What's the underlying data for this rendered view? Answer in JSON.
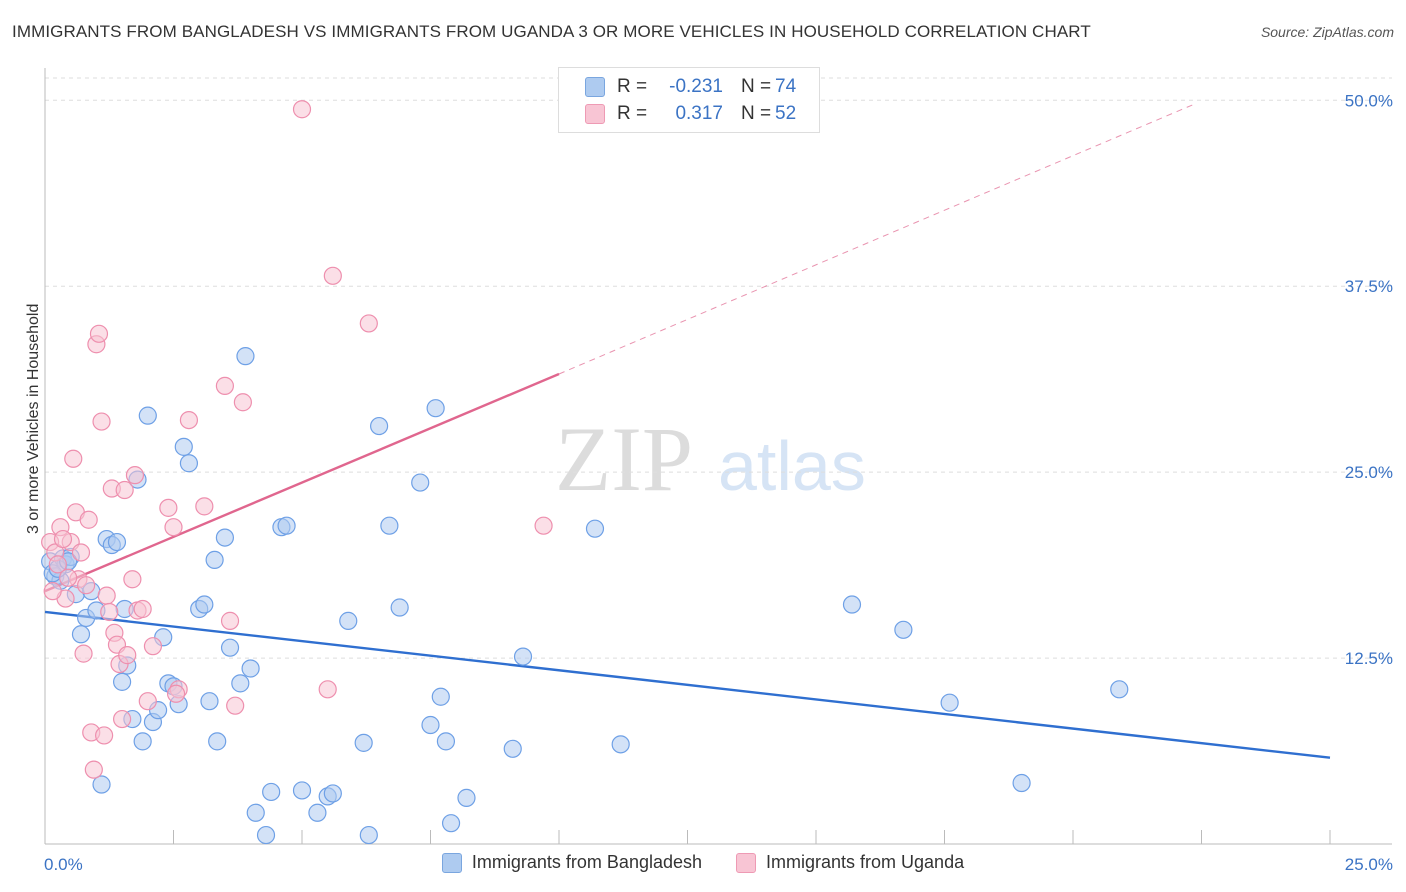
{
  "title": "IMMIGRANTS FROM BANGLADESH VS IMMIGRANTS FROM UGANDA 3 OR MORE VEHICLES IN HOUSEHOLD CORRELATION CHART",
  "source": "Source: ZipAtlas.com",
  "watermark": {
    "zip": "ZIP",
    "atlas": "atlas"
  },
  "correlation": {
    "rows": [
      {
        "r_label": "R =",
        "r_value": "-0.231",
        "n_label": "N =",
        "n_value": "74",
        "color": "#aecbf0",
        "border": "#7aa6df"
      },
      {
        "r_label": "R =",
        "r_value": "0.317",
        "n_label": "N =",
        "n_value": "52",
        "color": "#f8c5d4",
        "border": "#ee9ab4"
      }
    ]
  },
  "legend": {
    "items": [
      {
        "label": "Immigrants from Bangladesh",
        "color": "#aecbf0",
        "border": "#7aa6df"
      },
      {
        "label": "Immigrants from Uganda",
        "color": "#f8c5d4",
        "border": "#ee9ab4"
      }
    ]
  },
  "chart_data": {
    "type": "scatter",
    "title": "IMMIGRANTS FROM BANGLADESH VS IMMIGRANTS FROM UGANDA 3 OR MORE VEHICLES IN HOUSEHOLD CORRELATION CHART",
    "xlabel": "",
    "ylabel": "3 or more Vehicles in Household",
    "xlim": [
      0,
      25
    ],
    "ylim": [
      0,
      51.5
    ],
    "x_tick_labels": [
      "0.0%",
      "25.0%"
    ],
    "y_ticks": [
      12.5,
      25.0,
      37.5,
      50.0
    ],
    "y_tick_labels": [
      "12.5%",
      "25.0%",
      "37.5%",
      "50.0%"
    ],
    "grid": "horizontal dashed",
    "legend_position": "bottom",
    "series": [
      {
        "name": "Immigrants from Bangladesh",
        "color": "#6ea0e6",
        "fill": "#aecbf0",
        "trend": {
          "x": [
            0,
            25
          ],
          "y": [
            15.6,
            5.8
          ],
          "color": "#2f6fd0"
        },
        "points": [
          [
            0.1,
            19.0
          ],
          [
            0.2,
            18.0
          ],
          [
            0.3,
            17.7
          ],
          [
            0.35,
            19.2
          ],
          [
            0.4,
            18.8
          ],
          [
            0.5,
            19.3
          ],
          [
            0.6,
            16.8
          ],
          [
            0.7,
            14.1
          ],
          [
            0.8,
            15.2
          ],
          [
            0.9,
            17.0
          ],
          [
            1.0,
            15.7
          ],
          [
            1.1,
            4.0
          ],
          [
            1.2,
            20.5
          ],
          [
            1.3,
            20.1
          ],
          [
            1.4,
            20.3
          ],
          [
            1.5,
            10.9
          ],
          [
            1.6,
            12.0
          ],
          [
            1.7,
            8.4
          ],
          [
            1.8,
            24.5
          ],
          [
            1.9,
            6.9
          ],
          [
            2.0,
            28.8
          ],
          [
            2.1,
            8.2
          ],
          [
            2.2,
            9.0
          ],
          [
            2.3,
            13.9
          ],
          [
            2.4,
            10.8
          ],
          [
            2.5,
            10.6
          ],
          [
            2.6,
            9.4
          ],
          [
            2.7,
            26.7
          ],
          [
            2.8,
            25.6
          ],
          [
            3.0,
            15.8
          ],
          [
            3.1,
            16.1
          ],
          [
            3.2,
            9.6
          ],
          [
            3.3,
            19.1
          ],
          [
            3.35,
            6.9
          ],
          [
            3.5,
            20.6
          ],
          [
            3.6,
            13.2
          ],
          [
            3.8,
            10.8
          ],
          [
            3.9,
            32.8
          ],
          [
            4.0,
            11.8
          ],
          [
            4.1,
            2.1
          ],
          [
            4.3,
            0.6
          ],
          [
            4.4,
            3.5
          ],
          [
            4.6,
            21.3
          ],
          [
            4.7,
            21.4
          ],
          [
            5.0,
            3.6
          ],
          [
            5.3,
            2.1
          ],
          [
            5.5,
            3.2
          ],
          [
            5.6,
            3.4
          ],
          [
            5.9,
            15.0
          ],
          [
            6.2,
            6.8
          ],
          [
            6.3,
            0.6
          ],
          [
            6.5,
            28.1
          ],
          [
            6.7,
            21.4
          ],
          [
            6.9,
            15.9
          ],
          [
            7.3,
            24.3
          ],
          [
            7.5,
            8.0
          ],
          [
            7.6,
            29.3
          ],
          [
            7.7,
            9.9
          ],
          [
            7.8,
            6.9
          ],
          [
            7.9,
            1.4
          ],
          [
            8.2,
            3.1
          ],
          [
            9.1,
            6.4
          ],
          [
            9.3,
            12.6
          ],
          [
            10.7,
            21.2
          ],
          [
            11.2,
            6.7
          ],
          [
            15.7,
            16.1
          ],
          [
            16.7,
            14.4
          ],
          [
            17.6,
            9.5
          ],
          [
            19.0,
            4.1
          ],
          [
            20.9,
            10.4
          ],
          [
            0.15,
            18.2
          ],
          [
            0.25,
            18.5
          ],
          [
            1.55,
            15.8
          ],
          [
            0.45,
            19.0
          ]
        ]
      },
      {
        "name": "Immigrants from Uganda",
        "color": "#ee8fae",
        "fill": "#f8c5d4",
        "trend": {
          "x": [
            0,
            10
          ],
          "y": [
            17.0,
            31.6
          ],
          "color": "#e0668e",
          "dashed_to": {
            "x": 22.4,
            "y": 49.8
          }
        },
        "points": [
          [
            0.1,
            20.3
          ],
          [
            0.2,
            19.6
          ],
          [
            0.25,
            18.8
          ],
          [
            0.3,
            21.3
          ],
          [
            0.4,
            16.5
          ],
          [
            0.5,
            20.3
          ],
          [
            0.55,
            25.9
          ],
          [
            0.6,
            22.3
          ],
          [
            0.65,
            17.8
          ],
          [
            0.7,
            19.6
          ],
          [
            0.75,
            12.8
          ],
          [
            0.8,
            17.4
          ],
          [
            0.85,
            21.8
          ],
          [
            0.9,
            7.5
          ],
          [
            0.95,
            5.0
          ],
          [
            1.0,
            33.6
          ],
          [
            1.05,
            34.3
          ],
          [
            1.1,
            28.4
          ],
          [
            1.15,
            7.3
          ],
          [
            1.2,
            16.7
          ],
          [
            1.3,
            23.9
          ],
          [
            1.35,
            14.2
          ],
          [
            1.4,
            13.4
          ],
          [
            1.45,
            12.1
          ],
          [
            1.5,
            8.4
          ],
          [
            1.55,
            23.8
          ],
          [
            1.6,
            12.7
          ],
          [
            1.7,
            17.8
          ],
          [
            1.75,
            24.8
          ],
          [
            1.8,
            15.7
          ],
          [
            1.9,
            15.8
          ],
          [
            2.0,
            9.6
          ],
          [
            2.1,
            13.3
          ],
          [
            2.4,
            22.6
          ],
          [
            2.5,
            21.3
          ],
          [
            2.6,
            10.4
          ],
          [
            2.8,
            28.5
          ],
          [
            3.1,
            22.7
          ],
          [
            3.5,
            30.8
          ],
          [
            3.6,
            15.0
          ],
          [
            3.7,
            9.3
          ],
          [
            3.85,
            29.7
          ],
          [
            5.5,
            10.4
          ],
          [
            5.6,
            38.2
          ],
          [
            6.3,
            35.0
          ],
          [
            9.7,
            21.4
          ],
          [
            5.0,
            49.4
          ],
          [
            0.15,
            17.0
          ],
          [
            0.35,
            20.5
          ],
          [
            0.45,
            17.9
          ],
          [
            1.25,
            15.6
          ],
          [
            2.55,
            10.1
          ]
        ]
      }
    ]
  }
}
